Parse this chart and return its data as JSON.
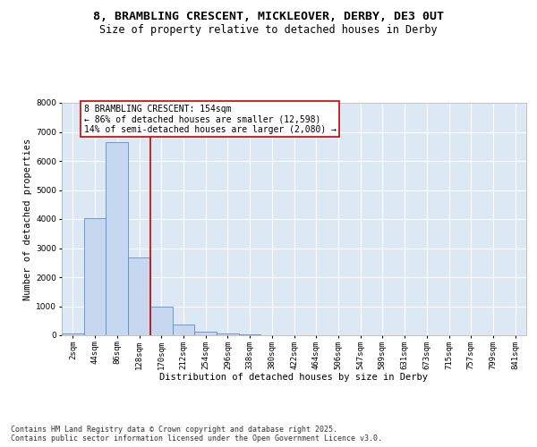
{
  "title": "8, BRAMBLING CRESCENT, MICKLEOVER, DERBY, DE3 0UT",
  "subtitle": "Size of property relative to detached houses in Derby",
  "xlabel": "Distribution of detached houses by size in Derby",
  "ylabel": "Number of detached properties",
  "bar_color": "#c5d8f0",
  "bar_edge_color": "#5b8ec4",
  "background_color": "#dde8f5",
  "grid_color": "#ffffff",
  "categories": [
    "2sqm",
    "44sqm",
    "86sqm",
    "128sqm",
    "170sqm",
    "212sqm",
    "254sqm",
    "296sqm",
    "338sqm",
    "380sqm",
    "422sqm",
    "464sqm",
    "506sqm",
    "547sqm",
    "589sqm",
    "631sqm",
    "673sqm",
    "715sqm",
    "757sqm",
    "799sqm",
    "841sqm"
  ],
  "values": [
    50,
    4020,
    6650,
    2680,
    990,
    360,
    130,
    60,
    20,
    5,
    2,
    0,
    0,
    0,
    0,
    0,
    0,
    0,
    0,
    0,
    0
  ],
  "ylim": [
    0,
    8000
  ],
  "yticks": [
    0,
    1000,
    2000,
    3000,
    4000,
    5000,
    6000,
    7000,
    8000
  ],
  "property_line_x": 3.5,
  "property_line_color": "#cc0000",
  "annotation_line1": "8 BRAMBLING CRESCENT: 154sqm",
  "annotation_line2": "← 86% of detached houses are smaller (12,598)",
  "annotation_line3": "14% of semi-detached houses are larger (2,080) →",
  "annotation_box_color": "#cc0000",
  "footer_text": "Contains HM Land Registry data © Crown copyright and database right 2025.\nContains public sector information licensed under the Open Government Licence v3.0.",
  "title_fontsize": 9.5,
  "subtitle_fontsize": 8.5,
  "axis_label_fontsize": 7.5,
  "tick_fontsize": 6.5,
  "annotation_fontsize": 7,
  "footer_fontsize": 6
}
